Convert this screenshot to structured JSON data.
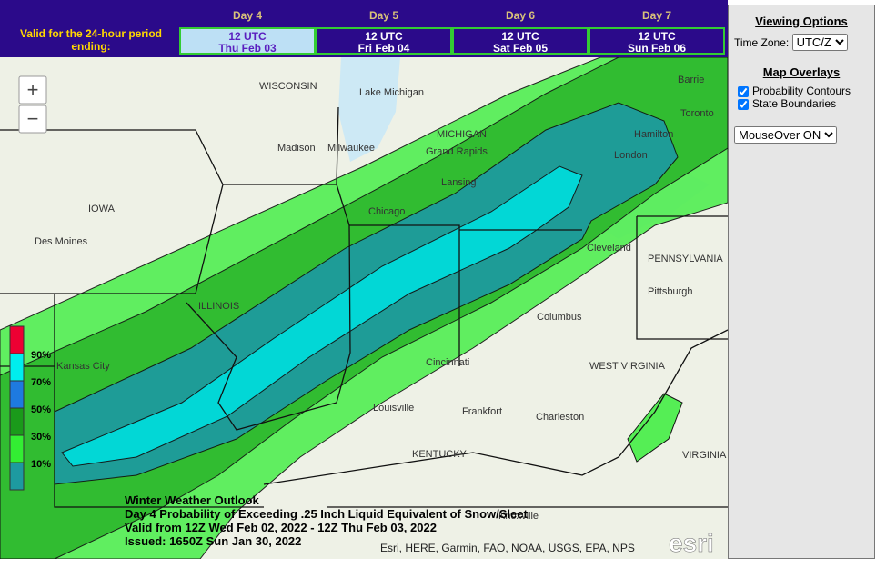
{
  "header": {
    "valid_label": "Valid for the 24-hour period ending:",
    "days": [
      {
        "day": "Day 4",
        "time": "12 UTC",
        "date": "Thu Feb 03"
      },
      {
        "day": "Day 5",
        "time": "12 UTC",
        "date": "Fri Feb 04"
      },
      {
        "day": "Day 6",
        "time": "12 UTC",
        "date": "Sat Feb 05"
      },
      {
        "day": "Day 7",
        "time": "12 UTC",
        "date": "Sun Feb 06"
      }
    ]
  },
  "panel": {
    "viewing_title": "Viewing Options",
    "timezone_label": "Time Zone:",
    "timezone_value": "UTC/Z",
    "overlays_title": "Map Overlays",
    "overlays": [
      "Probability Contours",
      "State Boundaries"
    ],
    "mouseover": "MouseOver ON"
  },
  "map": {
    "zoom_in": "+",
    "zoom_out": "−",
    "legend": [
      "90%",
      "70%",
      "50%",
      "30%",
      "10%"
    ],
    "labels": [
      "WISCONSIN",
      "Lake Michigan",
      "Madison",
      "Milwaukee",
      "MICHIGAN",
      "Grand Rapids",
      "Lansing",
      "Chicago",
      "IOWA",
      "Des Moines",
      "ILLINOIS",
      "Kansas City",
      "Columbus",
      "Cincinnati",
      "Louisville",
      "Frankfort",
      "Charleston",
      "WEST VIRGINIA",
      "KENTUCKY",
      "Knoxville",
      "Toronto",
      "Barrie",
      "Hamilton",
      "London",
      "Pittsburgh",
      "PENNSYLVANIA",
      "VIRGINIA",
      "Cleveland"
    ],
    "caption": [
      "Winter Weather Outlook",
      "Day 4 Probability of Exceeding .25 Inch Liquid Equivalent of Snow/Sleet",
      "Valid from 12Z Wed Feb 02, 2022 - 12Z Thu Feb 03, 2022",
      "Issued: 1650Z Sun Jan 30, 2022"
    ],
    "attribution": "Esri, HERE, Garmin, FAO, NOAA, USGS, EPA, NPS",
    "logo": "esri"
  }
}
